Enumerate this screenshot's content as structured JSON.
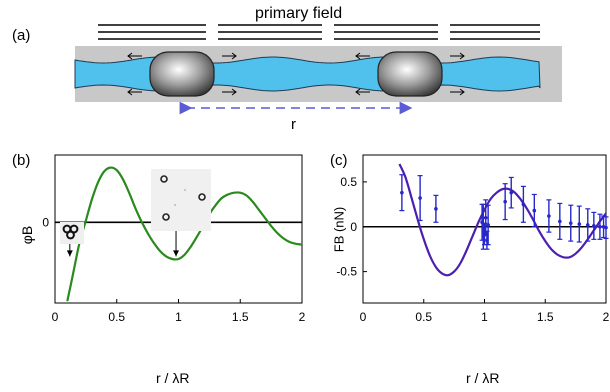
{
  "panel_a": {
    "label": "(a)",
    "primary_field_label": "primary field",
    "separation_label": "r",
    "colors": {
      "channel_gray": "#c8c8c8",
      "fluid_blue": "#4fc1ec",
      "separation_arrow": "#5b5bd6"
    }
  },
  "panel_b": {
    "label": "(b)",
    "inset_cluster_alt": "",
    "inset_separated_alt": ""
  },
  "panel_c": {
    "label": "(c)"
  },
  "chart_data": [
    {
      "type": "line",
      "panel": "(b)",
      "title": "",
      "xlabel": "r / λR",
      "ylabel": "φB",
      "xlim": [
        0,
        2
      ],
      "ylim": [
        -0.9,
        0.75
      ],
      "x_ticks": [
        0,
        0.5,
        1,
        1.5,
        2
      ],
      "x_tick_labels": [
        "0",
        "0.5",
        "1",
        "1.5",
        "2"
      ],
      "y_ticks": [
        0
      ],
      "y_tick_labels": [
        "0"
      ],
      "zero_line": true,
      "color": "#2a8a1e",
      "series": [
        {
          "x": [
            0.1,
            0.15,
            0.2,
            0.25,
            0.3,
            0.35,
            0.4,
            0.45,
            0.5,
            0.55,
            0.6,
            0.65,
            0.7,
            0.75,
            0.8,
            0.85,
            0.9,
            0.95,
            1.0,
            1.05,
            1.1,
            1.15,
            1.2,
            1.25,
            1.3,
            1.35,
            1.4,
            1.45,
            1.5,
            1.55,
            1.6,
            1.65,
            1.7,
            1.75,
            1.8,
            1.85,
            1.9,
            1.95,
            2.0
          ],
          "y": [
            -0.88,
            -0.55,
            -0.22,
            0.02,
            0.26,
            0.45,
            0.57,
            0.61,
            0.58,
            0.48,
            0.33,
            0.16,
            0.01,
            -0.12,
            -0.23,
            -0.32,
            -0.38,
            -0.41,
            -0.41,
            -0.36,
            -0.27,
            -0.16,
            -0.04,
            0.09,
            0.19,
            0.27,
            0.31,
            0.33,
            0.33,
            0.3,
            0.23,
            0.14,
            0.05,
            -0.04,
            -0.12,
            -0.18,
            -0.22,
            -0.24,
            -0.25
          ]
        }
      ],
      "annotations": [
        {
          "type": "arrow",
          "x": 0.12,
          "from_y": -0.05,
          "to_y": -0.38
        },
        {
          "type": "arrow",
          "x": 0.98,
          "from_y": -0.08,
          "to_y": -0.38
        }
      ]
    },
    {
      "type": "line",
      "panel": "(c)",
      "title": "",
      "xlabel": "r / λR",
      "ylabel": "FB (nN)",
      "xlim": [
        0,
        2
      ],
      "ylim": [
        -0.85,
        0.8
      ],
      "x_ticks": [
        0,
        0.5,
        1,
        1.5,
        2
      ],
      "x_tick_labels": [
        "0",
        "0.5",
        "1",
        "1.5",
        "2"
      ],
      "y_ticks": [
        -0.5,
        0,
        0.5
      ],
      "y_tick_labels": [
        "-0.5",
        "0",
        "0.5"
      ],
      "zero_line": true,
      "line_color": "#4b1fb0",
      "points_color": "#2626cc",
      "series": [
        {
          "name": "",
          "kind": "line",
          "x": [
            0.3,
            0.35,
            0.4,
            0.45,
            0.5,
            0.55,
            0.6,
            0.65,
            0.7,
            0.75,
            0.8,
            0.85,
            0.9,
            0.95,
            1.0,
            1.05,
            1.1,
            1.15,
            1.2,
            1.25,
            1.3,
            1.35,
            1.4,
            1.45,
            1.5,
            1.55,
            1.6,
            1.65,
            1.7,
            1.75,
            1.8,
            1.85,
            1.9,
            1.95,
            2.0
          ],
          "y": [
            0.7,
            0.55,
            0.32,
            0.08,
            -0.14,
            -0.32,
            -0.45,
            -0.52,
            -0.54,
            -0.5,
            -0.41,
            -0.27,
            -0.11,
            0.05,
            0.19,
            0.31,
            0.38,
            0.42,
            0.42,
            0.38,
            0.3,
            0.2,
            0.08,
            -0.05,
            -0.16,
            -0.25,
            -0.31,
            -0.34,
            -0.34,
            -0.3,
            -0.23,
            -0.14,
            -0.04,
            0.06,
            0.15
          ]
        },
        {
          "name": "",
          "kind": "errorbar",
          "x": [
            0.32,
            0.47,
            0.6,
            0.98,
            0.99,
            1.0,
            1.01,
            1.02,
            1.03,
            1.17,
            1.22,
            1.32,
            1.41,
            1.53,
            1.62,
            1.71,
            1.78,
            1.85,
            1.9,
            1.95,
            1.98,
            2.0
          ],
          "y": [
            0.38,
            0.32,
            0.2,
            0.05,
            0.0,
            -0.08,
            0.1,
            -0.15,
            0.02,
            0.28,
            0.38,
            0.25,
            0.18,
            0.12,
            0.06,
            0.04,
            0.03,
            0.02,
            0.01,
            0.0,
            0.0,
            -0.01
          ],
          "err": [
            0.2,
            0.25,
            0.15,
            0.2,
            0.25,
            0.12,
            0.2,
            0.1,
            0.22,
            0.2,
            0.17,
            0.2,
            0.18,
            0.18,
            0.2,
            0.2,
            0.2,
            0.18,
            0.15,
            0.14,
            0.12,
            0.12
          ]
        }
      ]
    }
  ]
}
